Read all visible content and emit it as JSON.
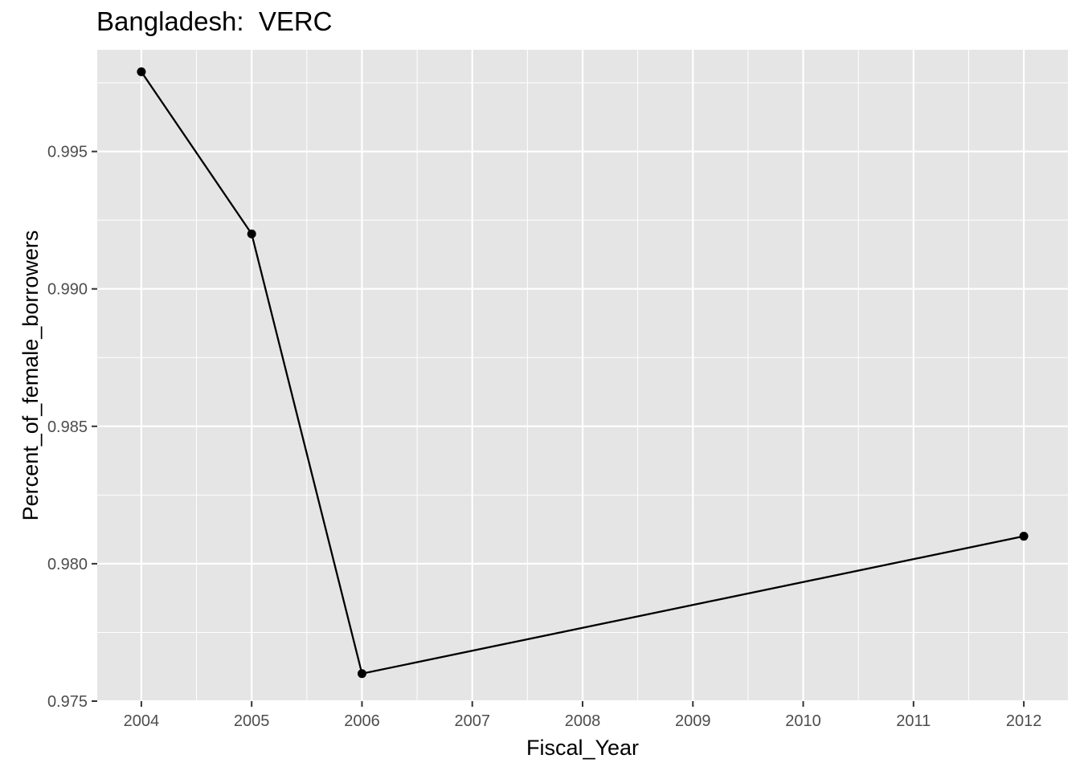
{
  "chart_data": {
    "type": "line",
    "title": "Bangladesh:  VERC",
    "xlabel": "Fiscal_Year",
    "ylabel": "Percent_of_female_borrowers",
    "x": [
      2004,
      2005,
      2006,
      2012
    ],
    "series": [
      {
        "values": [
          0.9979,
          0.992,
          0.976,
          0.981
        ]
      }
    ],
    "xlim": [
      2003.6,
      2012.4
    ],
    "ylim": [
      0.975,
      0.9987
    ],
    "xticks": [
      2004,
      2005,
      2006,
      2007,
      2008,
      2009,
      2010,
      2011,
      2012
    ],
    "yticks": [
      0.975,
      0.98,
      0.985,
      0.99,
      0.995
    ],
    "ytick_labels": [
      "0.975",
      "0.980",
      "0.985",
      "0.990",
      "0.995"
    ],
    "grid": true,
    "colors": {
      "panel": "#e5e5e5",
      "grid": "#ffffff",
      "line": "#000000",
      "point": "#000000"
    }
  }
}
